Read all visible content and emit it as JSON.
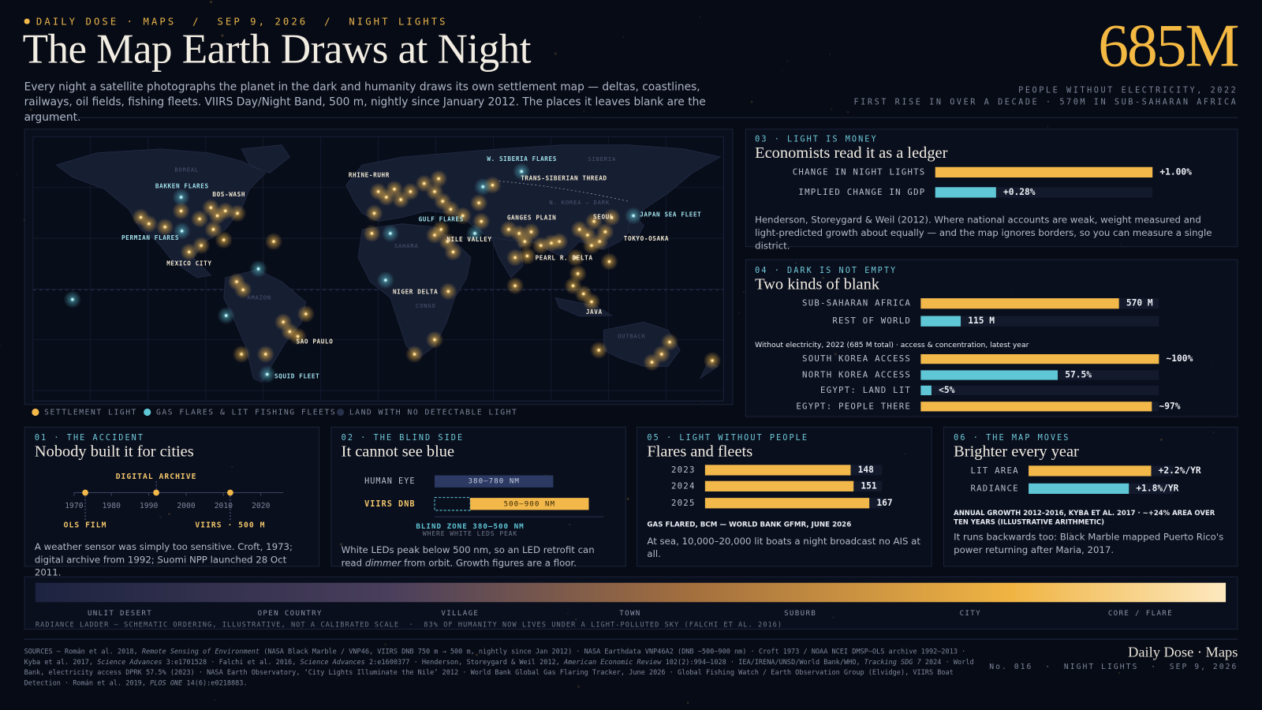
{
  "header": {
    "kicker": "DAILY DOSE · MAPS  /  SEP 9, 2026  /  NIGHT LIGHTS",
    "title": "The Map Earth Draws at Night",
    "subtitle": "Every night a satellite photographs the planet in the dark and humanity draws its own settlement map — deltas, coastlines, railways, oil fields, fishing fleets. VIIRS Day/Night Band, 500 m, nightly since January 2012. The places it leaves blank are the argument.",
    "stat": "685M",
    "stat_caption": "PEOPLE WITHOUT ELECTRICITY, 2022",
    "stat_note": "FIRST RISE IN OVER A DECADE · 570M IN SUB-SAHARAN AFRICA"
  },
  "map": {
    "labels": [
      "BAKKEN FLARES",
      "BOS-WASH",
      "PERMIAN FLARES",
      "MEXICO CITY",
      "RHINE-RUHR",
      "W. SIBERIA FLARES",
      "TRANS-SIBERIAN THREAD",
      "GULF FLARES",
      "NILE VALLEY",
      "GANGES PLAIN",
      "SEOUL",
      "JAPAN SEA FLEET",
      "TOKYO-OSAKA",
      "PEARL R. DELTA",
      "NIGER DELTA",
      "JAVA",
      "SAO PAULO",
      "SQUID FLEET"
    ],
    "regions": [
      "BOREAL",
      "SIBERIA",
      "N. KOREA — DARK",
      "SAHARA",
      "AMAZON",
      "CONGO",
      "OUTBACK"
    ],
    "legend": [
      {
        "label": "SETTLEMENT LIGHT",
        "color": "#f2b84a"
      },
      {
        "label": "GAS FLARES & LIT FISHING FLEETS",
        "color": "#5fc6d6"
      },
      {
        "label": "LAND WITH NO DETECTABLE LIGHT",
        "color": "#27304a"
      }
    ]
  },
  "panels": [
    {
      "kicker": "01 · THE ACCIDENT",
      "title": "Nobody built it for cities",
      "chart": {
        "type": "timeline",
        "xlim": [
          1970,
          2026
        ],
        "xticks": [
          1970,
          1980,
          1990,
          2000,
          2010,
          2020
        ],
        "events": [
          {
            "x": 1973,
            "label": "OLS FILM"
          },
          {
            "x": 1992,
            "label": "DIGITAL ARCHIVE"
          },
          {
            "x": 2011.8,
            "label": "VIIRS · 500 M"
          }
        ],
        "color": "#f2b84a"
      },
      "note": "A weather sensor was simply too sensitive. Croft, 1973; digital archive from 1992; Suomi NPP launched 28 Oct 2011."
    },
    {
      "kicker": "02 · THE BLIND SIDE",
      "title": "It cannot see blue",
      "chart": {
        "type": "range",
        "xlim": [
          380,
          950
        ],
        "categories": [
          "HUMAN EYE",
          "VIIRS DNB"
        ],
        "ranges": [
          [
            380,
            780
          ],
          [
            500,
            900
          ]
        ],
        "value_labels": [
          "380–780 NM",
          "500–900 NM"
        ],
        "colors": [
          "#2c3a63",
          "#f2b84a"
        ],
        "blind_zone": {
          "range": [
            380,
            500
          ],
          "label": "BLIND ZONE 380–500 NM",
          "sublabel": "WHERE WHITE LEDS PEAK",
          "color": "#5fc6d6"
        }
      },
      "note": [
        "White LEDs peak below 500 nm, so an LED retrofit can read ",
        "dimmer",
        " from orbit. Growth figures are a floor."
      ]
    },
    {
      "kicker": "03 · LIGHT IS MONEY",
      "title": "Economists read it as a ledger",
      "charts": [
        {
          "type": "bar",
          "xlim": [
            0,
            1
          ],
          "categories": [
            "CHANGE IN NIGHT LIGHTS",
            "IMPLIED CHANGE IN GDP"
          ],
          "values": [
            1.0,
            0.28
          ],
          "value_labels": [
            "+1.00%",
            "+0.28%"
          ],
          "colors": [
            "#f2b84a",
            "#5fc6d6"
          ]
        }
      ],
      "note": "Henderson, Storeygard & Weil (2012). Where national accounts are weak, weight measured and light-predicted growth about equally — and the map ignores borders, so you can measure a single district."
    },
    {
      "kicker": "04 · DARK IS NOT EMPTY",
      "title": "Two kinds of blank",
      "charts": [
        {
          "type": "bar",
          "xlim": [
            0,
            685
          ],
          "categories": [
            "SUB-SAHARAN AFRICA",
            "REST OF WORLD"
          ],
          "values": [
            570,
            115
          ],
          "value_labels": [
            "570 M",
            "115 M"
          ],
          "colors": [
            "#f2b84a",
            "#5fc6d6"
          ]
        },
        {
          "type": "bar",
          "xlim": [
            0,
            100
          ],
          "categories": [
            "SOUTH KOREA ACCESS",
            "NORTH KOREA ACCESS",
            "EGYPT: LAND LIT",
            "EGYPT: PEOPLE THERE"
          ],
          "values": [
            100,
            57.5,
            4.5,
            97
          ],
          "value_labels": [
            "~100%",
            "57.5%",
            "<5%",
            "~97%"
          ],
          "colors": [
            "#f2b84a",
            "#5fc6d6",
            "#5fc6d6",
            "#f2b84a"
          ]
        }
      ],
      "subheading": "Without electricity, 2022 (685 M total) · access & concentration, latest year"
    },
    {
      "kicker": "05 · LIGHT WITHOUT PEOPLE",
      "title": "Flares and fleets",
      "charts": [
        {
          "type": "bar",
          "xlim": [
            0,
            180
          ],
          "categories": [
            "2023",
            "2024",
            "2025"
          ],
          "values": [
            148,
            151,
            167
          ],
          "colors": [
            "#f2b84a",
            "#f2b84a",
            "#f2b84a"
          ]
        }
      ],
      "caption": "GAS FLARED, BCM — WORLD BANK GFMR, JUNE 2026",
      "note": "At sea, 10,000–20,000 lit boats a night broadcast no AIS at all."
    },
    {
      "kicker": "06 · THE MAP MOVES",
      "title": "Brighter every year",
      "charts": [
        {
          "type": "bar",
          "xlim": [
            0,
            2.6
          ],
          "categories": [
            "LIT AREA",
            "RADIANCE"
          ],
          "values": [
            2.2,
            1.8
          ],
          "value_labels": [
            "+2.2%/YR",
            "+1.8%/YR"
          ],
          "colors": [
            "#f2b84a",
            "#5fc6d6"
          ]
        }
      ],
      "caption": "ANNUAL GROWTH 2012–2016, KYBA ET AL. 2017 · ~+24% AREA OVER TEN YEARS (ILLUSTRATIVE ARITHMETIC)",
      "note": "It runs backwards too: Black Marble mapped Puerto Rico's power returning after Maria, 2017."
    }
  ],
  "ladder": {
    "stops": [
      "UNLIT DESERT",
      "OPEN COUNTRY",
      "VILLAGE",
      "TOWN",
      "SUBURB",
      "CITY",
      "CORE / FLARE"
    ],
    "caption": "RADIANCE LADDER — SCHEMATIC ORDERING, ILLUSTRATIVE, NOT A CALIBRATED SCALE  ·  83% OF HUMANITY NOW LIVES UNDER A LIGHT-POLLUTED SKY (FALCHI ET AL. 2016)"
  },
  "footer": {
    "sources": [
      {
        "text": "SOURCES — Román et al. 2018, "
      },
      {
        "text": "Remote Sensing of Environment",
        "em": true
      },
      {
        "text": " (NASA Black Marble / VNP46, VIIRS DNB 750 m → 500 m, nightly since Jan 2012) · NASA Earthdata VNP46A2 (DNB ~500–900 nm) · Croft 1973 / NOAA NCEI DMSP–OLS archive 1992–2013 · Kyba et al. 2017, "
      },
      {
        "text": "Science Advances",
        "em": true
      },
      {
        "text": " 3:e1701528 · Falchi et al. 2016, "
      },
      {
        "text": "Science Advances",
        "em": true
      },
      {
        "text": " 2:e1600377 · Henderson, Storeygard & Weil 2012, "
      },
      {
        "text": "American Economic Review",
        "em": true
      },
      {
        "text": " 102(2):994–1028 · IEA/IRENA/UNSD/World Bank/WHO, "
      },
      {
        "text": "Tracking SDG 7",
        "em": true
      },
      {
        "text": " 2024 · World Bank, electricity access DPRK 57.5% (2023) · NASA Earth Observatory, ‘City Lights Illuminate the Nile’ 2012 · World Bank Global Gas Flaring Tracker, June 2026 · Global Fishing Watch / Earth Observation Group (Elvidge), VIIRS Boat Detection · Román et al. 2019, "
      },
      {
        "text": "PLOS ONE",
        "em": true
      },
      {
        "text": " 14(6):e0218883."
      }
    ],
    "brand": "Daily Dose · Maps",
    "brand_sub": "No. 016  ·  NIGHT LIGHTS  ·  SEP 9, 2026"
  }
}
